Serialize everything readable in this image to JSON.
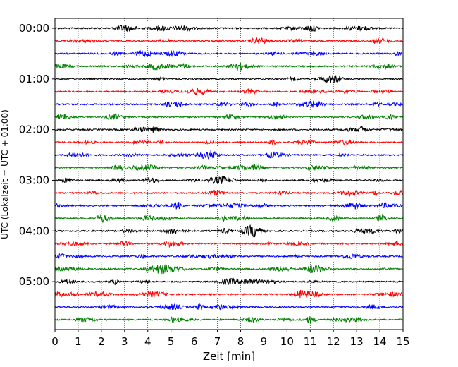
{
  "chart_data": {
    "type": "line",
    "title": "",
    "xlabel": "Zeit  [min]",
    "ylabel": "UTC (Lokalzeit = UTC + 01:00)",
    "xlim": [
      0,
      15
    ],
    "x_ticks": [
      "0",
      "1",
      "2",
      "3",
      "4",
      "5",
      "6",
      "7",
      "8",
      "9",
      "10",
      "11",
      "12",
      "13",
      "14",
      "15"
    ],
    "y_tick_labels": [
      "00:00",
      "01:00",
      "02:00",
      "03:00",
      "04:00",
      "05:00"
    ],
    "grid": "vertical dotted at each minute",
    "trace_interval_min": 15,
    "trace_count": 24,
    "color_cycle": [
      "#000000",
      "#ff0000",
      "#0000ff",
      "#008000"
    ],
    "legend": "none"
  }
}
